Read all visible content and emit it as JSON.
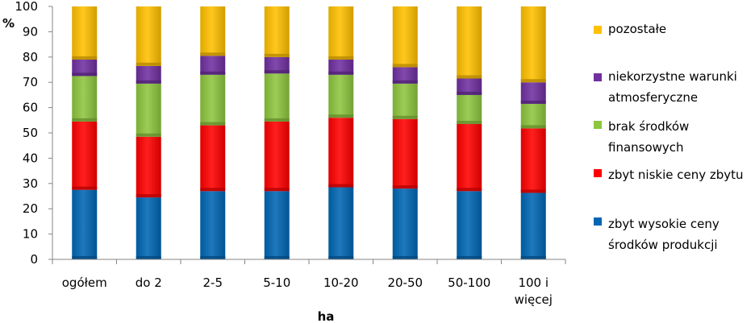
{
  "chart_data": {
    "type": "bar",
    "stacked": true,
    "ylabel": "%",
    "xlabel": "ha",
    "ylim": [
      0,
      100
    ],
    "yticks": [
      0,
      10,
      20,
      30,
      40,
      50,
      60,
      70,
      80,
      90,
      100
    ],
    "categories": [
      "ogółem",
      "do 2",
      "2-5",
      "5-10",
      "10-20",
      "20-50",
      "50-100",
      "100 i więcej"
    ],
    "series": [
      {
        "name": "zbyt wysokie ceny środków produkcji",
        "color": "#0066b3",
        "values": [
          27.5,
          24.5,
          27,
          27,
          28.5,
          28,
          27,
          26.3
        ]
      },
      {
        "name": "zbyt niskie ceny zbytu",
        "color": "#ff0000",
        "values": [
          27,
          24,
          26,
          27.5,
          27.5,
          27.5,
          26.5,
          25.5
        ]
      },
      {
        "name": "brak środków finansowych",
        "color": "#8dc63f",
        "values": [
          18,
          21,
          20,
          19,
          17,
          14,
          11.5,
          9.7
        ]
      },
      {
        "name": "niekorzystne warunki atmosferyczne",
        "color": "#7030a0",
        "values": [
          6.5,
          7,
          7.5,
          6.5,
          6,
          6.5,
          6.5,
          8.5
        ]
      },
      {
        "name": "pozostałe",
        "color": "#ffc000",
        "values": [
          21,
          23.5,
          19.5,
          20,
          21,
          24,
          28.5,
          30
        ]
      }
    ],
    "legend_order": [
      4,
      3,
      2,
      1,
      0
    ],
    "grid": false,
    "legend_position": "right"
  }
}
